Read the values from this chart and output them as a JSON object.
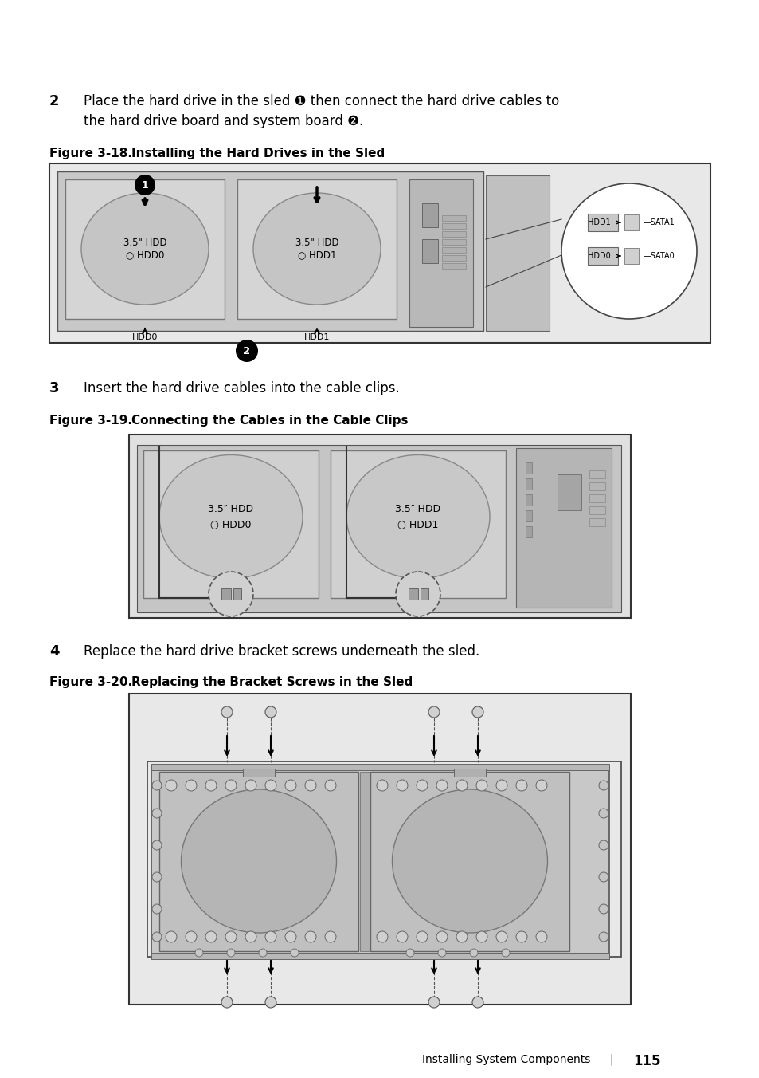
{
  "bg_color": "#ffffff",
  "text_color": "#000000",
  "footer_text": "Installing System Components",
  "footer_pipe": "|",
  "footer_page": "115",
  "fig18_label": "Figure 3-18.",
  "fig18_title": "Installing the Hard Drives in the Sled",
  "fig19_label": "Figure 3-19.",
  "fig19_title": "Connecting the Cables in the Cable Clips",
  "fig20_label": "Figure 3-20.",
  "fig20_title": "Replacing the Bracket Screws in the Sled",
  "gray_dark": "#888888",
  "gray_mid": "#aaaaaa",
  "gray_light": "#cccccc",
  "gray_bg": "#d8d8d8",
  "gray_hdd": "#b8b8b8",
  "outline": "#555555"
}
